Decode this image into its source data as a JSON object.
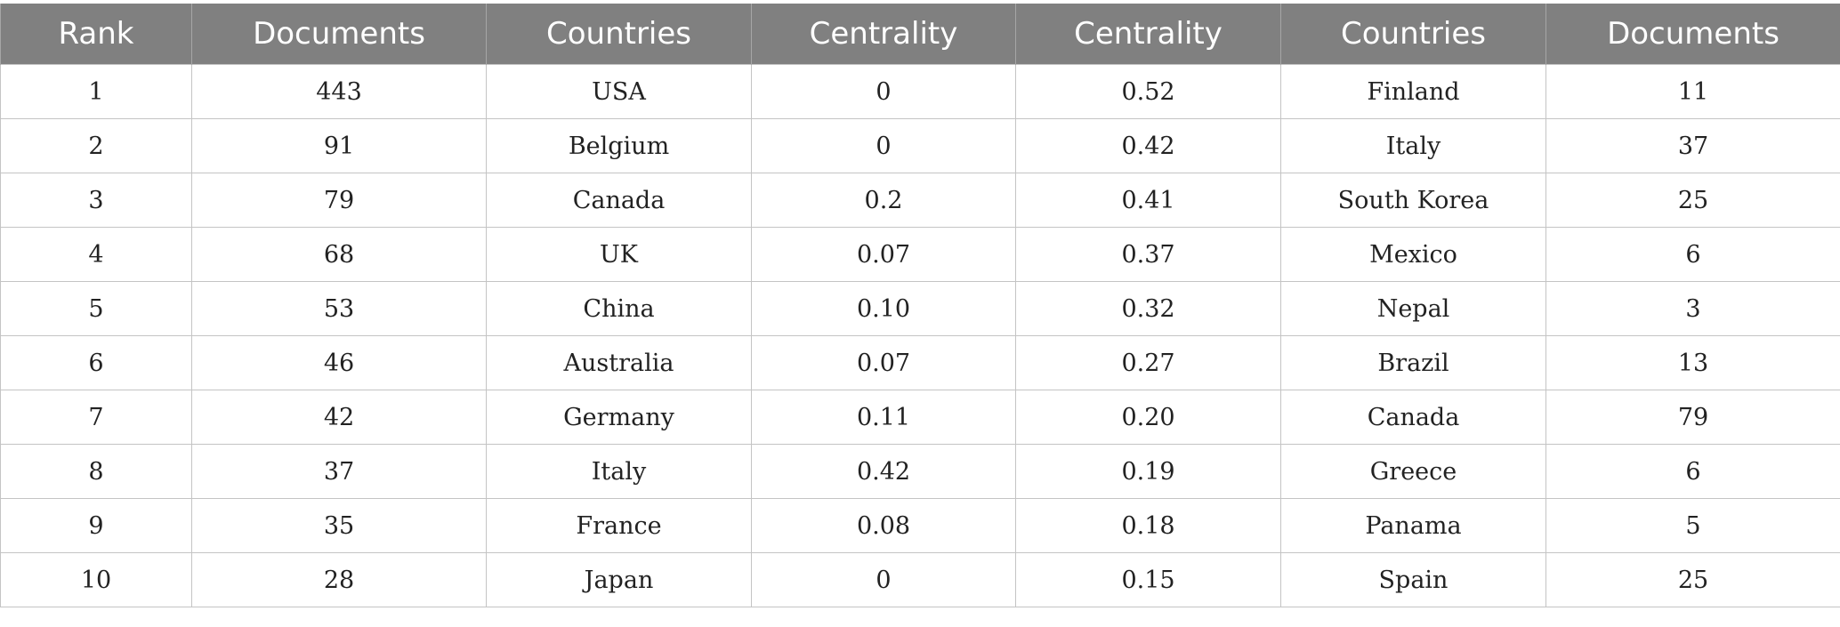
{
  "table": {
    "headers": [
      "Rank",
      "Documents",
      "Countries",
      "Centrality",
      "Centrality",
      "Countries",
      "Documents"
    ],
    "rows": [
      [
        "1",
        "443",
        "USA",
        "0",
        "0.52",
        "Finland",
        "11"
      ],
      [
        "2",
        "91",
        "Belgium",
        "0",
        "0.42",
        "Italy",
        "37"
      ],
      [
        "3",
        "79",
        "Canada",
        "0.2",
        "0.41",
        "South Korea",
        "25"
      ],
      [
        "4",
        "68",
        "UK",
        "0.07",
        "0.37",
        "Mexico",
        "6"
      ],
      [
        "5",
        "53",
        "China",
        "0.10",
        "0.32",
        "Nepal",
        "3"
      ],
      [
        "6",
        "46",
        "Australia",
        "0.07",
        "0.27",
        "Brazil",
        "13"
      ],
      [
        "7",
        "42",
        "Germany",
        "0.11",
        "0.20",
        "Canada",
        "79"
      ],
      [
        "8",
        "37",
        "Italy",
        "0.42",
        "0.19",
        "Greece",
        "6"
      ],
      [
        "9",
        "35",
        "France",
        "0.08",
        "0.18",
        "Panama",
        "5"
      ],
      [
        "10",
        "28",
        "Japan",
        "0",
        "0.15",
        "Spain",
        "25"
      ]
    ]
  }
}
